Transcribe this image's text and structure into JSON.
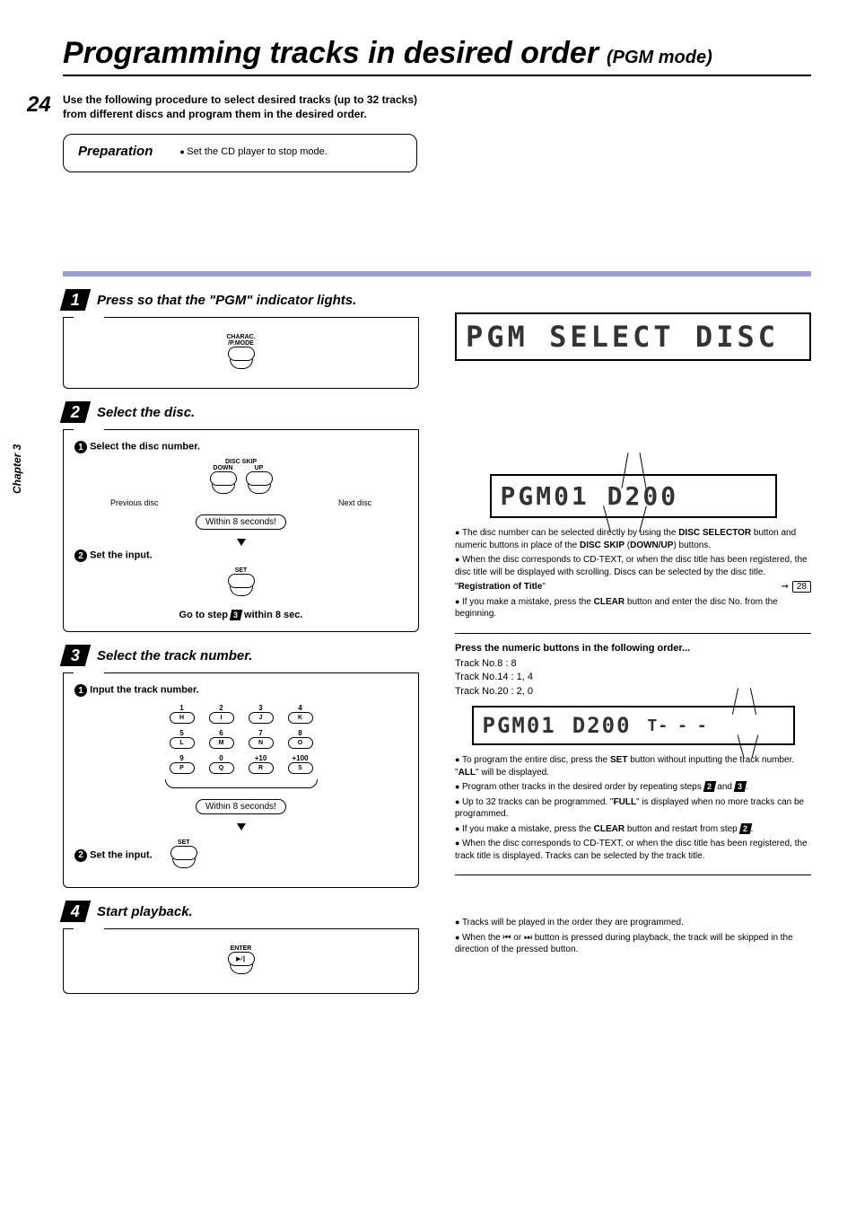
{
  "title": {
    "main": "Programming tracks in desired order",
    "sub": "(PGM mode)"
  },
  "page_number": "24",
  "chapter_label": "Chapter 3",
  "intro": "Use the following procedure to select desired tracks (up to 32 tracks) from different discs and program them in the desired order.",
  "prep": {
    "title": "Preparation",
    "body": "Set the CD player to stop mode."
  },
  "steps": {
    "s1": {
      "num": "1",
      "title": "Press so that the \"PGM\" indicator lights.",
      "btn_label": "CHARAC.\n/P.MODE"
    },
    "s2": {
      "num": "2",
      "title": "Select the disc.",
      "sub1": "Select the disc number.",
      "up_label": "UP",
      "down_label": "DOWN",
      "group_label": "DISC SKIP",
      "prev": "Previous disc",
      "next": "Next disc",
      "within": "Within 8 seconds!",
      "sub2": "Set the input.",
      "set_label": "SET",
      "goto": "Go to step 3 within 8 sec."
    },
    "s3": {
      "num": "3",
      "title": "Select the track number.",
      "sub1": "Input the track number.",
      "within": "Within 8 seconds!",
      "sub2": "Set the input.",
      "set_label": "SET",
      "numbers": [
        {
          "n": "1",
          "l": "H"
        },
        {
          "n": "2",
          "l": "I"
        },
        {
          "n": "3",
          "l": "J"
        },
        {
          "n": "4",
          "l": "K"
        },
        {
          "n": "5",
          "l": "L"
        },
        {
          "n": "6",
          "l": "M"
        },
        {
          "n": "7",
          "l": "N"
        },
        {
          "n": "8",
          "l": "O"
        },
        {
          "n": "9",
          "l": "P"
        },
        {
          "n": "0",
          "l": "Q"
        },
        {
          "n": "+10",
          "l": "R"
        },
        {
          "n": "+100",
          "l": "S"
        }
      ]
    },
    "s4": {
      "num": "4",
      "title": "Start playback.",
      "btn_label": "ENTER",
      "btn_sym": "▶/∥"
    }
  },
  "right": {
    "display1": "PGM  SELECT  DISC",
    "display2": "PGM01  D200",
    "display3a": "PGM01",
    "display3b": "D200",
    "display3c": "T- - -",
    "notes2": [
      "The disc number can be selected directly by using the DISC SELECTOR button and numeric buttons in place of the DISC SKIP (DOWN/UP) buttons.",
      "When the disc corresponds to CD-TEXT, or when the disc title has been registered, the disc title will be displayed with scrolling. Discs can be selected by the disc title.",
      "\"Registration of Title\"",
      "If you make a mistake, press the CLEAR button and enter the disc No. from the beginning."
    ],
    "page_ref": "28",
    "section3_title": "Press the numeric buttons in the following order...",
    "section3_lines": [
      "Track No.8   : 8",
      "Track No.14 : 1, 4",
      "Track No.20 : 2, 0"
    ],
    "notes3": [
      "To program the entire disc, press the SET button without inputting the track number. \"ALL\" will be displayed.",
      "Program other tracks in the desired order by repeating steps 2 and 3.",
      "Up to 32 tracks can be programmed. \"FULL\" is displayed when no more tracks can be programmed.",
      "If you make a mistake, press the CLEAR button and restart from step 2.",
      "When the disc corresponds to CD-TEXT, or when the disc title has been registered, the track title is displayed.  Tracks can be selected by the track title."
    ],
    "notes4": [
      "Tracks will be played in the order they are programmed.",
      "When the ⏮ or ⏭ button is pressed during playback, the track will be skipped in the direction of the pressed button."
    ]
  },
  "colors": {
    "accent": "#9b9bd6"
  }
}
